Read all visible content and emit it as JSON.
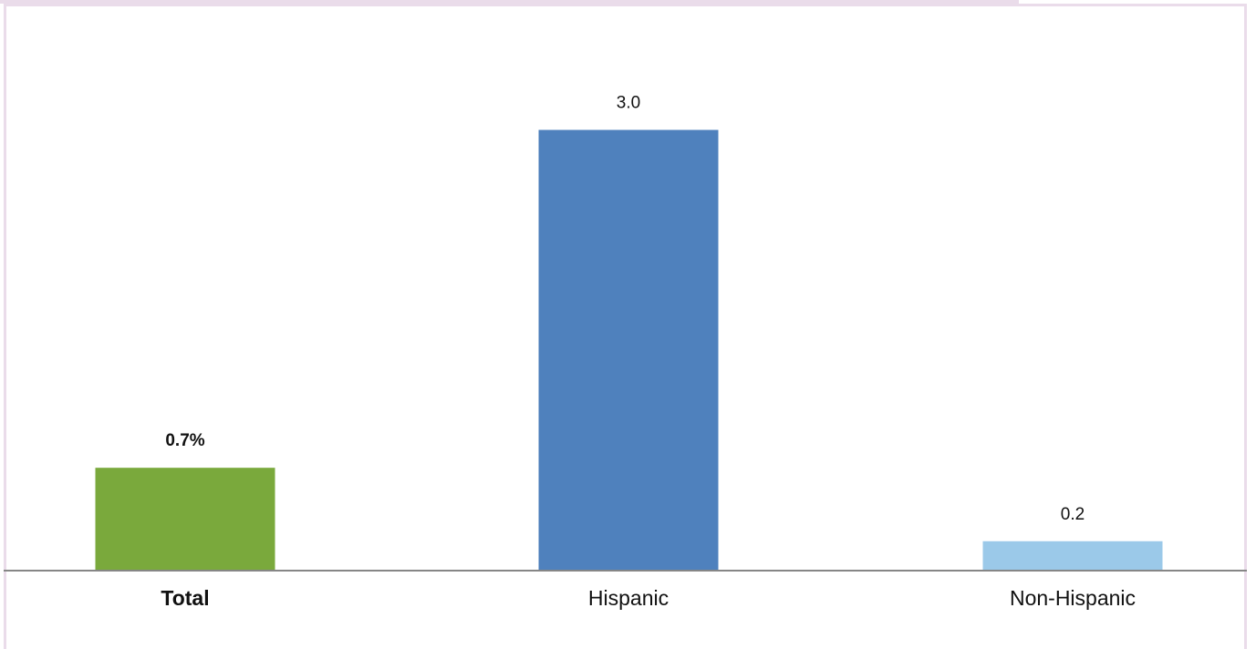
{
  "chart_data": {
    "type": "bar",
    "title": "",
    "xlabel": "",
    "ylabel": "",
    "categories": [
      "Total",
      "Hispanic",
      "Non-Hispanic"
    ],
    "values": [
      0.7,
      3.0,
      0.2
    ],
    "data_labels": [
      "0.7%",
      "3.0",
      "0.2"
    ],
    "colors": [
      "#7aa93c",
      "#4f81bd",
      "#9bc9e9"
    ],
    "bold_categories": [
      "Total"
    ],
    "ylim": [
      0,
      3.45
    ],
    "grid": false,
    "legend": "none"
  }
}
